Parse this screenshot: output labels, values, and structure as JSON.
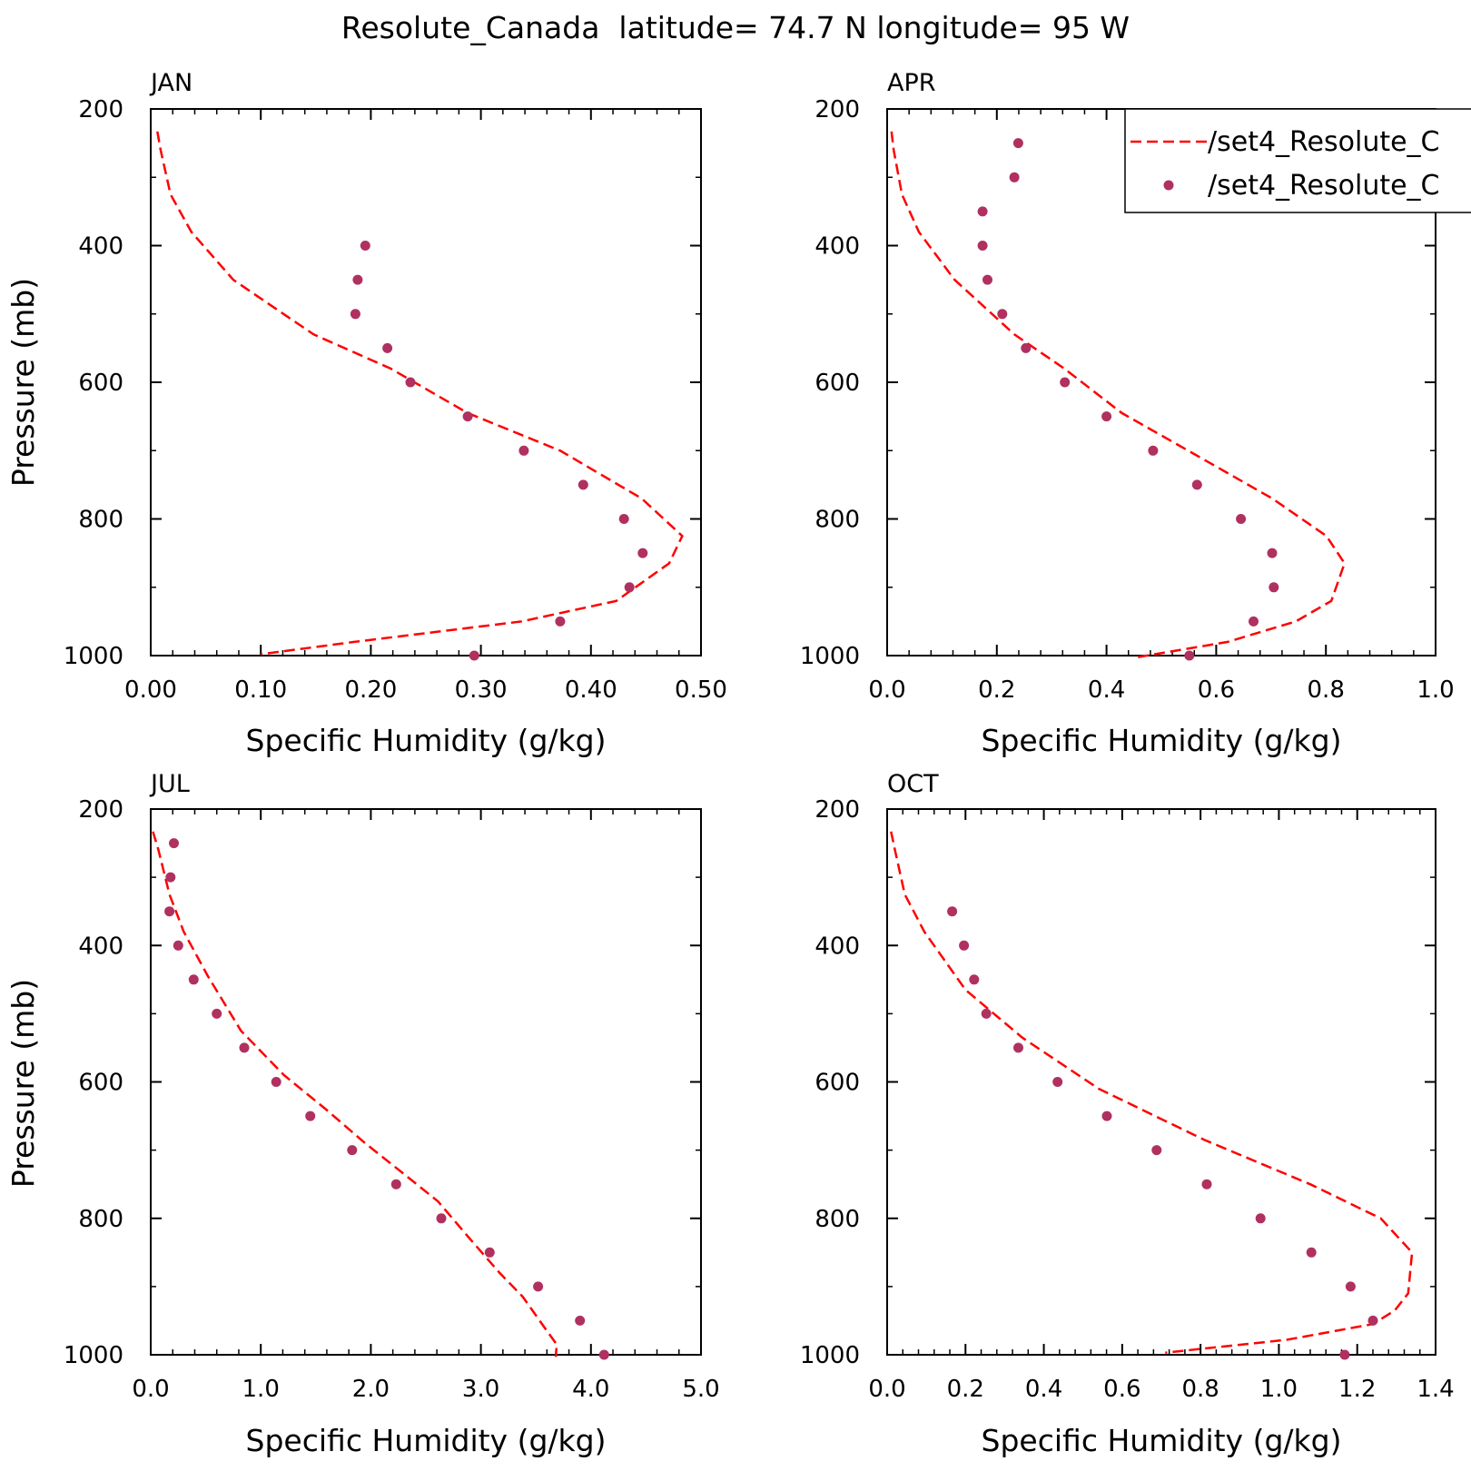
{
  "figure": {
    "title": "Resolute_Canada  latitude= 74.7 N longitude= 95 W"
  },
  "legend": {
    "entries": [
      {
        "label": "/set4_Resolute_C",
        "style": "dashed-line",
        "color": "#ff0000"
      },
      {
        "label": "/set4_Resolute_C",
        "style": "dot",
        "color": "#b03060"
      }
    ]
  },
  "colors": {
    "model_line": "#ff0000",
    "obs_dot": "#b03060",
    "axes": "#000000"
  },
  "chart_data": [
    {
      "type": "line",
      "panel": "JAN",
      "xlabel": "Specific Humidity (g/kg)",
      "ylabel": "Pressure (mb)",
      "xlim": [
        0.0,
        0.5
      ],
      "ylim": [
        200,
        1000
      ],
      "y_inverted": true,
      "x_ticks": [
        "0.00",
        "0.10",
        "0.20",
        "0.30",
        "0.40",
        "0.50"
      ],
      "y_ticks": [
        "200",
        "400",
        "600",
        "800",
        "1000"
      ],
      "series": [
        {
          "style": "dashed-line",
          "points": [
            [
              0.006,
              233
            ],
            [
              0.009,
              260
            ],
            [
              0.018,
              325
            ],
            [
              0.037,
              380
            ],
            [
              0.075,
              450
            ],
            [
              0.148,
              530
            ],
            [
              0.218,
              580
            ],
            [
              0.288,
              645
            ],
            [
              0.372,
              700
            ],
            [
              0.446,
              770
            ],
            [
              0.483,
              825
            ],
            [
              0.471,
              865
            ],
            [
              0.423,
              920
            ],
            [
              0.337,
              950
            ],
            [
              0.185,
              980
            ],
            [
              0.1,
              998
            ]
          ]
        },
        {
          "style": "dots",
          "points": [
            [
              0.195,
              400
            ],
            [
              0.188,
              450
            ],
            [
              0.186,
              500
            ],
            [
              0.215,
              550
            ],
            [
              0.236,
              600
            ],
            [
              0.288,
              650
            ],
            [
              0.339,
              700
            ],
            [
              0.393,
              750
            ],
            [
              0.43,
              800
            ],
            [
              0.447,
              850
            ],
            [
              0.435,
              900
            ],
            [
              0.372,
              950
            ],
            [
              0.294,
              1000
            ]
          ]
        }
      ]
    },
    {
      "type": "line",
      "panel": "APR",
      "xlabel": "Specific Humidity (g/kg)",
      "ylabel": "",
      "xlim": [
        0.0,
        1.0
      ],
      "ylim": [
        200,
        1000
      ],
      "y_inverted": true,
      "x_ticks": [
        "0.0",
        "0.2",
        "0.4",
        "0.6",
        "0.8",
        "1.0"
      ],
      "y_ticks": [
        "200",
        "400",
        "600",
        "800",
        "1000"
      ],
      "series": [
        {
          "style": "dashed-line",
          "points": [
            [
              0.008,
              233
            ],
            [
              0.012,
              260
            ],
            [
              0.027,
              325
            ],
            [
              0.058,
              380
            ],
            [
              0.123,
              450
            ],
            [
              0.232,
              530
            ],
            [
              0.323,
              580
            ],
            [
              0.428,
              645
            ],
            [
              0.549,
              700
            ],
            [
              0.702,
              770
            ],
            [
              0.801,
              825
            ],
            [
              0.834,
              865
            ],
            [
              0.81,
              920
            ],
            [
              0.745,
              950
            ],
            [
              0.621,
              980
            ],
            [
              0.451,
              1003
            ]
          ]
        },
        {
          "style": "dots",
          "points": [
            [
              0.239,
              250
            ],
            [
              0.232,
              300
            ],
            [
              0.174,
              350
            ],
            [
              0.174,
              400
            ],
            [
              0.183,
              450
            ],
            [
              0.21,
              500
            ],
            [
              0.253,
              550
            ],
            [
              0.324,
              600
            ],
            [
              0.4,
              650
            ],
            [
              0.485,
              700
            ],
            [
              0.565,
              750
            ],
            [
              0.645,
              800
            ],
            [
              0.702,
              850
            ],
            [
              0.705,
              900
            ],
            [
              0.668,
              950
            ],
            [
              0.551,
              1000
            ]
          ]
        }
      ]
    },
    {
      "type": "line",
      "panel": "JUL",
      "xlabel": "Specific Humidity (g/kg)",
      "ylabel": "Pressure (mb)",
      "xlim": [
        0.0,
        5.0
      ],
      "ylim": [
        200,
        1000
      ],
      "y_inverted": true,
      "x_ticks": [
        "0.0",
        "1.0",
        "2.0",
        "3.0",
        "4.0",
        "5.0"
      ],
      "y_ticks": [
        "200",
        "400",
        "600",
        "800",
        "1000"
      ],
      "series": [
        {
          "style": "dashed-line",
          "points": [
            [
              0.02,
              233
            ],
            [
              0.07,
              260
            ],
            [
              0.17,
              325
            ],
            [
              0.3,
              380
            ],
            [
              0.52,
              445
            ],
            [
              0.82,
              525
            ],
            [
              1.21,
              590
            ],
            [
              1.59,
              640
            ],
            [
              1.95,
              690
            ],
            [
              2.3,
              735
            ],
            [
              2.61,
              775
            ],
            [
              2.9,
              830
            ],
            [
              3.17,
              880
            ],
            [
              3.38,
              915
            ],
            [
              3.6,
              965
            ],
            [
              3.69,
              985
            ],
            [
              3.68,
              1003
            ]
          ]
        },
        {
          "style": "dots",
          "points": [
            [
              0.21,
              250
            ],
            [
              0.18,
              300
            ],
            [
              0.17,
              350
            ],
            [
              0.25,
              400
            ],
            [
              0.39,
              450
            ],
            [
              0.6,
              500
            ],
            [
              0.85,
              550
            ],
            [
              1.14,
              600
            ],
            [
              1.45,
              650
            ],
            [
              1.83,
              700
            ],
            [
              2.23,
              750
            ],
            [
              2.64,
              800
            ],
            [
              3.08,
              850
            ],
            [
              3.52,
              900
            ],
            [
              3.9,
              950
            ],
            [
              4.12,
              1000
            ]
          ]
        }
      ]
    },
    {
      "type": "line",
      "panel": "OCT",
      "xlabel": "Specific Humidity (g/kg)",
      "ylabel": "",
      "xlim": [
        0.0,
        1.4
      ],
      "ylim": [
        200,
        1000
      ],
      "y_inverted": true,
      "x_ticks": [
        "0.0",
        "0.2",
        "0.4",
        "0.6",
        "0.8",
        "1.0",
        "1.2",
        "1.4"
      ],
      "y_ticks": [
        "200",
        "400",
        "600",
        "800",
        "1000"
      ],
      "series": [
        {
          "style": "dashed-line",
          "points": [
            [
              0.01,
              233
            ],
            [
              0.02,
              260
            ],
            [
              0.045,
              325
            ],
            [
              0.095,
              380
            ],
            [
              0.2,
              465
            ],
            [
              0.345,
              535
            ],
            [
              0.54,
              610
            ],
            [
              0.81,
              685
            ],
            [
              1.08,
              750
            ],
            [
              1.26,
              800
            ],
            [
              1.34,
              850
            ],
            [
              1.33,
              910
            ],
            [
              1.296,
              935
            ],
            [
              1.24,
              955
            ],
            [
              1.02,
              978
            ],
            [
              0.71,
              997
            ]
          ]
        },
        {
          "style": "dots",
          "points": [
            [
              0.166,
              350
            ],
            [
              0.196,
              400
            ],
            [
              0.222,
              450
            ],
            [
              0.253,
              500
            ],
            [
              0.335,
              550
            ],
            [
              0.435,
              600
            ],
            [
              0.561,
              650
            ],
            [
              0.688,
              700
            ],
            [
              0.816,
              750
            ],
            [
              0.953,
              800
            ],
            [
              1.083,
              850
            ],
            [
              1.183,
              900
            ],
            [
              1.24,
              950
            ],
            [
              1.168,
              1000
            ]
          ]
        }
      ]
    }
  ]
}
